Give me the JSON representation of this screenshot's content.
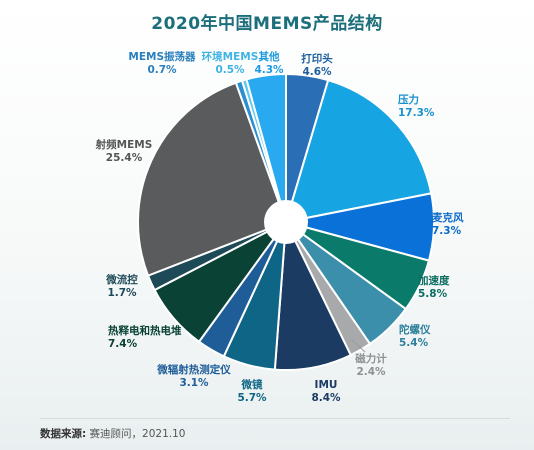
{
  "chart_data": {
    "type": "pie",
    "title": "2020年中国MEMS产品结构",
    "legend": "none",
    "slices": [
      {
        "label": "打印头",
        "value": 4.6,
        "display": "4.6%",
        "color": "#2a6fb5",
        "label_color": "#1f5f9e"
      },
      {
        "label": "压力",
        "value": 17.3,
        "display": "17.3%",
        "color": "#17a4e2",
        "label_color": "#1791cf"
      },
      {
        "label": "麦克风",
        "value": 7.3,
        "display": "7.3%",
        "color": "#0a71d8",
        "label_color": "#0a6ac8"
      },
      {
        "label": "加速度",
        "value": 5.8,
        "display": "5.8%",
        "color": "#0a7a6a",
        "label_color": "#0b6e60"
      },
      {
        "label": "陀螺仪",
        "value": 5.4,
        "display": "5.4%",
        "color": "#3c8fab",
        "label_color": "#2e7f9b"
      },
      {
        "label": "磁力计",
        "value": 2.4,
        "display": "2.4%",
        "color": "#a7a9ab",
        "label_color": "#8e9092"
      },
      {
        "label": "IMU",
        "value": 8.4,
        "display": "8.4%",
        "color": "#1c3b63",
        "label_color": "#1c3b63"
      },
      {
        "label": "微镜",
        "value": 5.7,
        "display": "5.7%",
        "color": "#0e6586",
        "label_color": "#0e6586"
      },
      {
        "label": "微辐射热测定仪",
        "value": 3.1,
        "display": "3.1%",
        "color": "#1f5d99",
        "label_color": "#1f5d99"
      },
      {
        "label": "热释电和热电堆",
        "value": 7.4,
        "display": "7.4%",
        "color": "#0b4236",
        "label_color": "#0b4236"
      },
      {
        "label": "微流控",
        "value": 1.7,
        "display": "1.7%",
        "color": "#1e4a58",
        "label_color": "#1e4a58"
      },
      {
        "label": "射频MEMS",
        "value": 25.4,
        "display": "25.4%",
        "color": "#5a5b5d",
        "label_color": "#555"
      },
      {
        "label": "MEMS振荡器",
        "value": 0.7,
        "display": "0.7%",
        "color": "#2c8fd0",
        "label_color": "#2a7fbd"
      },
      {
        "label": "环境MEMS",
        "value": 0.5,
        "display": "0.5%",
        "color": "#5ec8ef",
        "label_color": "#3fb4e4"
      },
      {
        "label": "其他",
        "value": 4.3,
        "display": "4.3%",
        "color": "#28a9f0",
        "label_color": "#1d9ae0"
      }
    ]
  },
  "source": {
    "prefix": "数据来源:",
    "text": "赛迪顾问，2021.10"
  }
}
